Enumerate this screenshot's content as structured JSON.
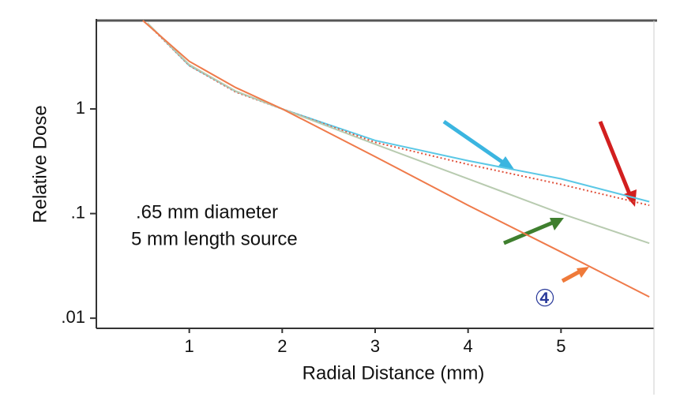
{
  "chart_data": {
    "type": "line",
    "xlabel": "Radial Distance (mm)",
    "ylabel": "Relative Dose",
    "annotations": [
      ".65 mm diameter",
      "5 mm length source",
      "④"
    ],
    "xlim": [
      0,
      6
    ],
    "xticks": [
      1,
      2,
      3,
      4,
      5
    ],
    "ylim": [
      0.008,
      7
    ],
    "yscale": "log",
    "yticks": [
      {
        "value": 0.01,
        "label": ".01"
      },
      {
        "value": 0.1,
        "label": ".1"
      },
      1
    ],
    "series": [
      {
        "color": "#5bc8e6",
        "style": "solid",
        "x": [
          0.55,
          1,
          1.5,
          2,
          3,
          4,
          5,
          5.95
        ],
        "values": [
          6.6,
          2.6,
          1.47,
          1,
          0.5,
          0.32,
          0.215,
          0.13
        ]
      },
      {
        "color": "#e0503a",
        "style": "dotted",
        "x": [
          0.55,
          1,
          1.5,
          2,
          3,
          4,
          5,
          5.95
        ],
        "values": [
          6.5,
          2.6,
          1.45,
          1,
          0.48,
          0.295,
          0.19,
          0.12
        ]
      },
      {
        "color": "#b8cbb0",
        "style": "solid",
        "x": [
          0.55,
          1,
          1.5,
          2,
          3,
          4,
          5,
          5.95
        ],
        "values": [
          6.6,
          2.65,
          1.48,
          1,
          0.46,
          0.215,
          0.1,
          0.052
        ]
      },
      {
        "color": "#ef7a4a",
        "style": "solid",
        "x": [
          0.5,
          1,
          1.5,
          2,
          3,
          4,
          5,
          5.95
        ],
        "values": [
          7,
          2.85,
          1.6,
          1,
          0.35,
          0.12,
          0.043,
          0.016
        ]
      }
    ]
  }
}
